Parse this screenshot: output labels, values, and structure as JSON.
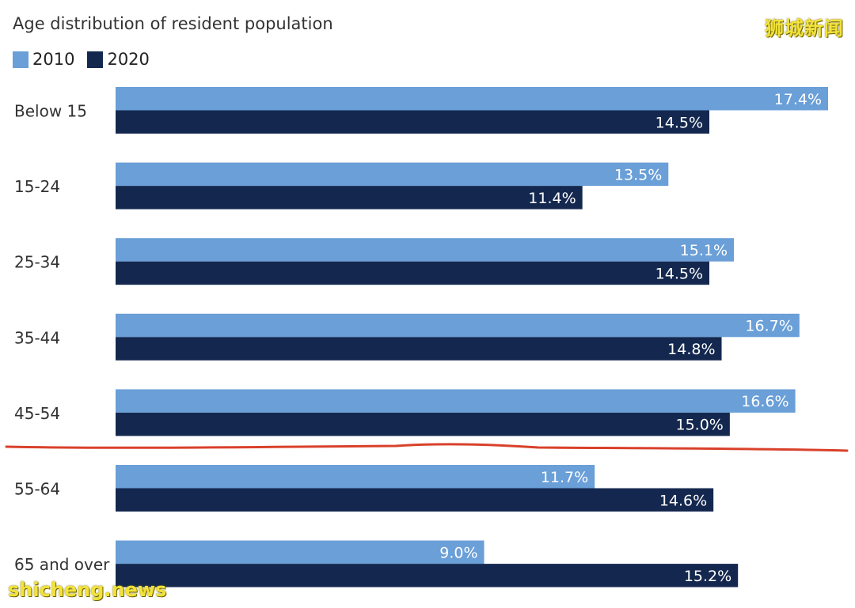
{
  "chart_data": {
    "type": "bar",
    "orientation": "horizontal",
    "title": "Age distribution of resident population",
    "categories": [
      "Below 15",
      "15-24",
      "25-34",
      "35-44",
      "45-54",
      "55-64",
      "65 and over"
    ],
    "series": [
      {
        "name": "2010",
        "color": "#6a9fd8",
        "values": [
          17.4,
          13.5,
          15.1,
          16.7,
          16.6,
          11.7,
          9.0
        ],
        "labels": [
          "17.4%",
          "13.5%",
          "15.1%",
          "16.7%",
          "16.6%",
          "11.7%",
          "9.0%"
        ]
      },
      {
        "name": "2020",
        "color": "#14284f",
        "values": [
          14.5,
          11.4,
          14.5,
          14.8,
          15.0,
          14.6,
          15.2
        ],
        "labels": [
          "14.5%",
          "11.4%",
          "14.5%",
          "14.8%",
          "15.0%",
          "14.6%",
          "15.2%"
        ]
      }
    ],
    "xlim": [
      0,
      17.4
    ],
    "grid": false,
    "legend_position": "top-left",
    "annotation": {
      "type": "hand-drawn-line",
      "color": "#d9412b",
      "between": [
        "45-54",
        "55-64"
      ]
    }
  },
  "watermarks": {
    "top_right": "狮城新闻",
    "bottom_left": "shicheng.news"
  }
}
